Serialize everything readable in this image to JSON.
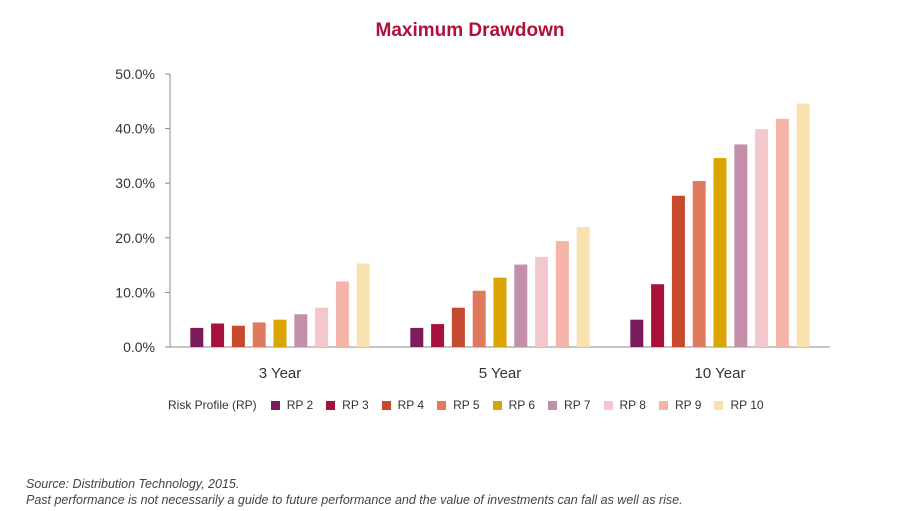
{
  "chart_data": {
    "type": "bar",
    "title": "Maximum Drawdown",
    "categories": [
      "3 Year",
      "5 Year",
      "10 Year"
    ],
    "y_ticks": [
      "0.0%",
      "10.0%",
      "20.0%",
      "30.0%",
      "40.0%",
      "50.0%"
    ],
    "ylim": [
      0,
      50
    ],
    "legend_title": "Risk Profile (RP)",
    "legend_position": "bottom",
    "series": [
      {
        "name": "RP 2",
        "color": "#7a1d5a",
        "values": [
          3.5,
          3.5,
          5.0
        ]
      },
      {
        "name": "RP 3",
        "color": "#a8123a",
        "values": [
          4.3,
          4.2,
          11.5
        ]
      },
      {
        "name": "RP 4",
        "color": "#c74a2e",
        "values": [
          3.9,
          7.2,
          27.7
        ]
      },
      {
        "name": "RP 5",
        "color": "#e07a5f",
        "values": [
          4.5,
          10.3,
          30.4
        ]
      },
      {
        "name": "RP 6",
        "color": "#daa500",
        "values": [
          5.0,
          12.7,
          34.6
        ]
      },
      {
        "name": "RP 7",
        "color": "#c48faa",
        "values": [
          6.0,
          15.1,
          37.1
        ]
      },
      {
        "name": "RP 8",
        "color": "#f2c8cc",
        "values": [
          7.2,
          16.5,
          39.9
        ]
      },
      {
        "name": "RP 9",
        "color": "#f4b4a8",
        "values": [
          12.0,
          19.4,
          41.8
        ]
      },
      {
        "name": "RP 10",
        "color": "#fae1b0",
        "values": [
          15.3,
          22.0,
          44.6
        ]
      }
    ]
  },
  "footnote": {
    "source": "Source: Distribution Technology, 2015.",
    "disclaimer": "Past performance is not necessarily a guide to future performance and the value of investments can fall as well as rise."
  }
}
